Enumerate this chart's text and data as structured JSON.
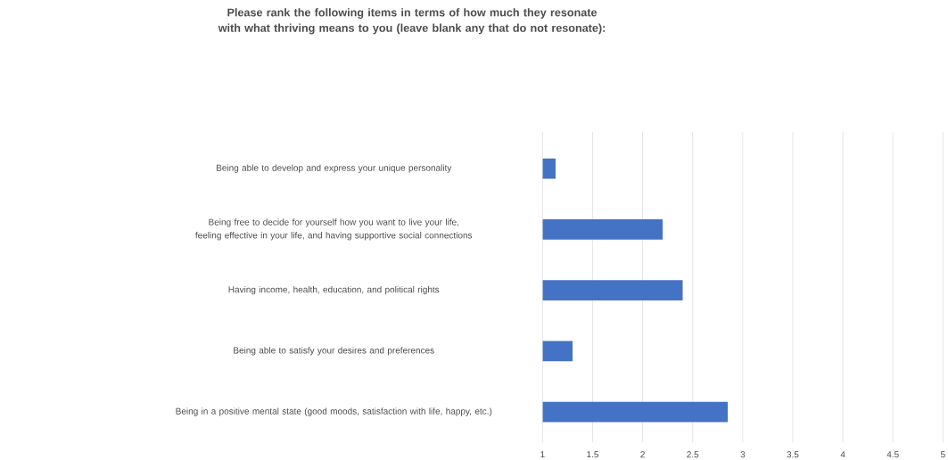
{
  "chart_data": {
    "type": "bar",
    "orientation": "horizontal",
    "title": "Please rank the following items in terms of how much they resonate with what thriving means to you (leave blank any that do not resonate):",
    "categories": [
      "Being able to develop and express your unique personality",
      "Being free to decide for yourself how you want to live your life, feeling effective in your life, and having supportive social connections",
      "Having income, health, education, and political rights",
      "Being able to satisfy your desires and preferences",
      "Being in a positive mental state (good moods, satisfaction with life, happy, etc.)"
    ],
    "values": [
      1.13,
      2.2,
      2.4,
      1.3,
      2.85
    ],
    "color": "#4472c4",
    "xlim": [
      1,
      5
    ],
    "xticks": [
      1,
      1.5,
      2,
      2.5,
      3,
      3.5,
      4,
      4.5,
      5
    ],
    "grid": "x"
  }
}
